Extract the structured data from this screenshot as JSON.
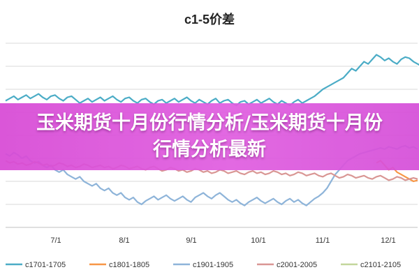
{
  "chart_data": {
    "type": "line",
    "title": "c1-5价差",
    "x_tick_labels": [
      "7/1",
      "8/1",
      "9/1",
      "10/1",
      "11/1",
      "12/1"
    ],
    "grid": true,
    "legend_position": "bottom",
    "series": [
      {
        "name": "c1701-1705",
        "color": "#4bacc6",
        "values": [
          -10,
          -8,
          -6,
          -9,
          -7,
          -5,
          -8,
          -6,
          -4,
          -7,
          -9,
          -6,
          -5,
          -8,
          -10,
          -7,
          -6,
          -9,
          -12,
          -10,
          -8,
          -11,
          -9,
          -7,
          -10,
          -8,
          -6,
          -9,
          -11,
          -8,
          -7,
          -10,
          -12,
          -9,
          -8,
          -11,
          -13,
          -10,
          -9,
          -12,
          -10,
          -8,
          -11,
          -9,
          -7,
          -10,
          -12,
          -9,
          -11,
          -13,
          -10,
          -8,
          -12,
          -10,
          -9,
          -12,
          -14,
          -11,
          -10,
          -13,
          -11,
          -9,
          -12,
          -10,
          -8,
          -11,
          -13,
          -10,
          -12,
          -14,
          -11,
          -9,
          -12,
          -10,
          -8,
          -6,
          -3,
          0,
          2,
          4,
          6,
          8,
          10,
          14,
          18,
          16,
          20,
          24,
          22,
          26,
          30,
          28,
          25,
          27,
          24,
          22,
          26,
          28,
          27,
          24,
          22,
          20,
          18
        ]
      },
      {
        "name": "c1801-1805",
        "color": "#f79646",
        "values": [
          null,
          null,
          null,
          null,
          null,
          null,
          null,
          null,
          null,
          null,
          null,
          null,
          null,
          null,
          null,
          null,
          null,
          null,
          null,
          null,
          null,
          null,
          null,
          null,
          null,
          null,
          null,
          null,
          null,
          null,
          null,
          null,
          null,
          null,
          null,
          null,
          null,
          null,
          null,
          null,
          null,
          null,
          null,
          null,
          null,
          null,
          null,
          null,
          null,
          null,
          null,
          null,
          null,
          null,
          null,
          null,
          null,
          null,
          null,
          null,
          null,
          null,
          null,
          null,
          null,
          null,
          null,
          null,
          null,
          null,
          null,
          null,
          null,
          null,
          null,
          null,
          null,
          null,
          null,
          null,
          null,
          null,
          null,
          null,
          null,
          null,
          null,
          null,
          null,
          null,
          -64,
          -62,
          -66,
          -70,
          -68,
          -72,
          -74,
          -76,
          -78,
          -80,
          -79
        ]
      },
      {
        "name": "c1901-1905",
        "color": "#8eb4d9",
        "values": [
          -56,
          -58,
          -55,
          -57,
          -60,
          -58,
          -62,
          -64,
          -63,
          -66,
          -68,
          -66,
          -70,
          -72,
          -70,
          -74,
          -76,
          -78,
          -76,
          -80,
          -82,
          -84,
          -82,
          -86,
          -88,
          -86,
          -90,
          -92,
          -90,
          -94,
          -96,
          -94,
          -98,
          -100,
          -97,
          -95,
          -93,
          -96,
          -94,
          -92,
          -95,
          -97,
          -95,
          -93,
          -96,
          -98,
          -94,
          -92,
          -90,
          -93,
          -95,
          -92,
          -90,
          -93,
          -96,
          -98,
          -96,
          -99,
          -101,
          -98,
          -96,
          -94,
          -97,
          -99,
          -97,
          -95,
          -98,
          -100,
          -97,
          -95,
          -98,
          -96,
          -99,
          -101,
          -98,
          -95,
          -93,
          -90,
          -86,
          -80,
          -74,
          -70,
          -66,
          -62,
          -60,
          -58,
          -56,
          -55,
          -54,
          -53,
          -52,
          -51,
          -52,
          -50,
          -51,
          -52,
          -50,
          -49,
          -51,
          -50,
          -52
        ]
      },
      {
        "name": "c2001-2005",
        "color": "#d99694",
        "values": [
          -62,
          -64,
          -63,
          -65,
          -64,
          -66,
          -65,
          -63,
          -64,
          -66,
          -65,
          -67,
          -66,
          -64,
          -65,
          -67,
          -66,
          -68,
          -67,
          -65,
          -66,
          -68,
          -67,
          -66,
          -68,
          -67,
          -69,
          -68,
          -66,
          -67,
          -69,
          -68,
          -67,
          -69,
          -70,
          -68,
          -67,
          -69,
          -71,
          -70,
          -68,
          -69,
          -71,
          -70,
          -72,
          -71,
          -69,
          -70,
          -72,
          -71,
          -73,
          -72,
          -70,
          -71,
          -73,
          -72,
          -71,
          -73,
          -74,
          -72,
          -71,
          -73,
          -72,
          -74,
          -73,
          -71,
          -72,
          -74,
          -73,
          -75,
          -74,
          -72,
          -73,
          -75,
          -74,
          -73,
          -75,
          -76,
          -74,
          -73,
          -75,
          -77,
          -76,
          -74,
          -75,
          -77,
          -76,
          -75,
          -77,
          -78,
          -76,
          -75,
          -77,
          -79,
          -78,
          -76,
          -77,
          -79,
          -78,
          -77,
          -78
        ]
      },
      {
        "name": "c2101-2105",
        "color": "#c3d69b",
        "values": []
      }
    ]
  },
  "banner": {
    "text": "玉米期货十月份行情分析/玉米期货十月份行情分析最新"
  }
}
